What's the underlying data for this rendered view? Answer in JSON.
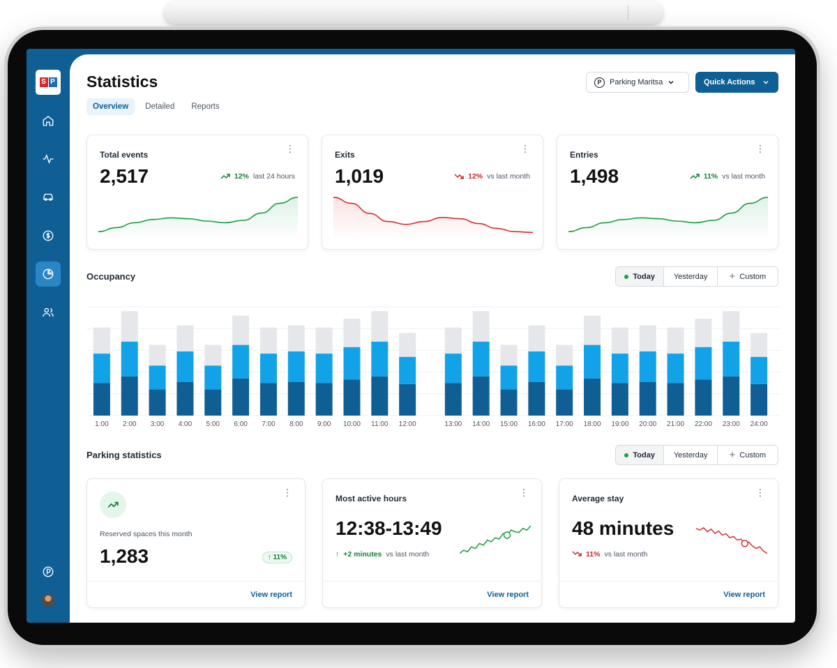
{
  "header": {
    "title": "Statistics",
    "location_label": "Parking Maritsa",
    "quick_actions_label": "Quick Actions"
  },
  "logo": {
    "left": "S",
    "right": "P"
  },
  "tabs": [
    {
      "label": "Overview",
      "active": true
    },
    {
      "label": "Detailed",
      "active": false
    },
    {
      "label": "Reports",
      "active": false
    }
  ],
  "sidebar": {
    "items": [
      {
        "icon": "home-icon"
      },
      {
        "icon": "activity-icon"
      },
      {
        "icon": "car-icon"
      },
      {
        "icon": "dollar-icon"
      },
      {
        "icon": "pie-chart-icon",
        "active": true
      },
      {
        "icon": "users-icon"
      }
    ],
    "bottom_icon": "parking-icon"
  },
  "kpis": [
    {
      "title": "Total events",
      "value": "2,517",
      "change": "12%",
      "direction": "up",
      "period": "last 24 hours",
      "color": "#1a9b45",
      "trend": [
        0.1,
        0.2,
        0.32,
        0.4,
        0.44,
        0.42,
        0.36,
        0.32,
        0.38,
        0.56,
        0.8,
        0.95
      ]
    },
    {
      "title": "Exits",
      "value": "1,019",
      "change": "12%",
      "direction": "down",
      "period": "vs last month",
      "color": "#d32f2f",
      "trend": [
        0.95,
        0.8,
        0.55,
        0.35,
        0.28,
        0.35,
        0.45,
        0.42,
        0.3,
        0.18,
        0.1,
        0.08
      ]
    },
    {
      "title": "Entries",
      "value": "1,498",
      "change": "11%",
      "direction": "up",
      "period": "vs last month",
      "color": "#1a9b45",
      "trend": [
        0.1,
        0.2,
        0.32,
        0.4,
        0.44,
        0.42,
        0.36,
        0.32,
        0.38,
        0.56,
        0.8,
        0.95
      ]
    }
  ],
  "occupancy": {
    "title": "Occupancy",
    "filters": [
      "Today",
      "Yesterday",
      "Custom"
    ],
    "active_filter": "Today"
  },
  "chart_data": {
    "type": "bar",
    "stacked": true,
    "categories": [
      "1:00",
      "2:00",
      "3:00",
      "4:00",
      "5:00",
      "6:00",
      "7:00",
      "8:00",
      "9:00",
      "10:00",
      "11:00",
      "12:00",
      "13:00",
      "14:00",
      "15:00",
      "16:00",
      "17:00",
      "18:00",
      "19:00",
      "20:00",
      "21:00",
      "22:00",
      "23:00",
      "24:00"
    ],
    "series": [
      {
        "color": "#0f5f94",
        "values": [
          30,
          36,
          24,
          31,
          24,
          34,
          30,
          31,
          30,
          33,
          36,
          29,
          30,
          36,
          24,
          31,
          24,
          34,
          30,
          31,
          30,
          33,
          36,
          29
        ]
      },
      {
        "color": "#12a2e8",
        "values": [
          27,
          32,
          22,
          28,
          22,
          31,
          27,
          28,
          27,
          30,
          32,
          25,
          27,
          32,
          22,
          28,
          22,
          31,
          27,
          28,
          27,
          30,
          32,
          25
        ]
      },
      {
        "color": "#e5e7ea",
        "values": [
          24,
          28,
          19,
          24,
          19,
          27,
          24,
          24,
          24,
          26,
          28,
          22,
          24,
          28,
          19,
          24,
          19,
          27,
          24,
          24,
          24,
          26,
          28,
          22
        ]
      }
    ],
    "ylim": [
      0,
      100
    ],
    "grid": true
  },
  "parking": {
    "title": "Parking statistics",
    "filters": [
      "Today",
      "Yesterday",
      "Custom"
    ],
    "active_filter": "Today",
    "reserved": {
      "label": "Reserved spaces this month",
      "value": "1,283",
      "badge": "11%",
      "link": "View report"
    },
    "active_hours": {
      "title": "Most active hours",
      "value": "12:38-13:49",
      "change": "+2 minutes",
      "period": "vs last month",
      "link": "View report",
      "color": "#1a9b45",
      "trend": [
        0.15,
        0.25,
        0.2,
        0.35,
        0.3,
        0.45,
        0.4,
        0.55,
        0.5,
        0.62,
        0.58,
        0.75,
        0.7,
        0.85,
        0.8,
        0.78,
        0.9,
        0.85,
        0.98
      ]
    },
    "avg_stay": {
      "title": "Average stay",
      "value": "48 minutes",
      "change": "11%",
      "period": "vs last month",
      "link": "View report",
      "color": "#d32f2f",
      "trend": [
        0.9,
        0.85,
        0.92,
        0.8,
        0.88,
        0.75,
        0.82,
        0.7,
        0.74,
        0.62,
        0.66,
        0.55,
        0.58,
        0.45,
        0.5,
        0.38,
        0.3,
        0.35,
        0.22,
        0.15
      ]
    }
  }
}
